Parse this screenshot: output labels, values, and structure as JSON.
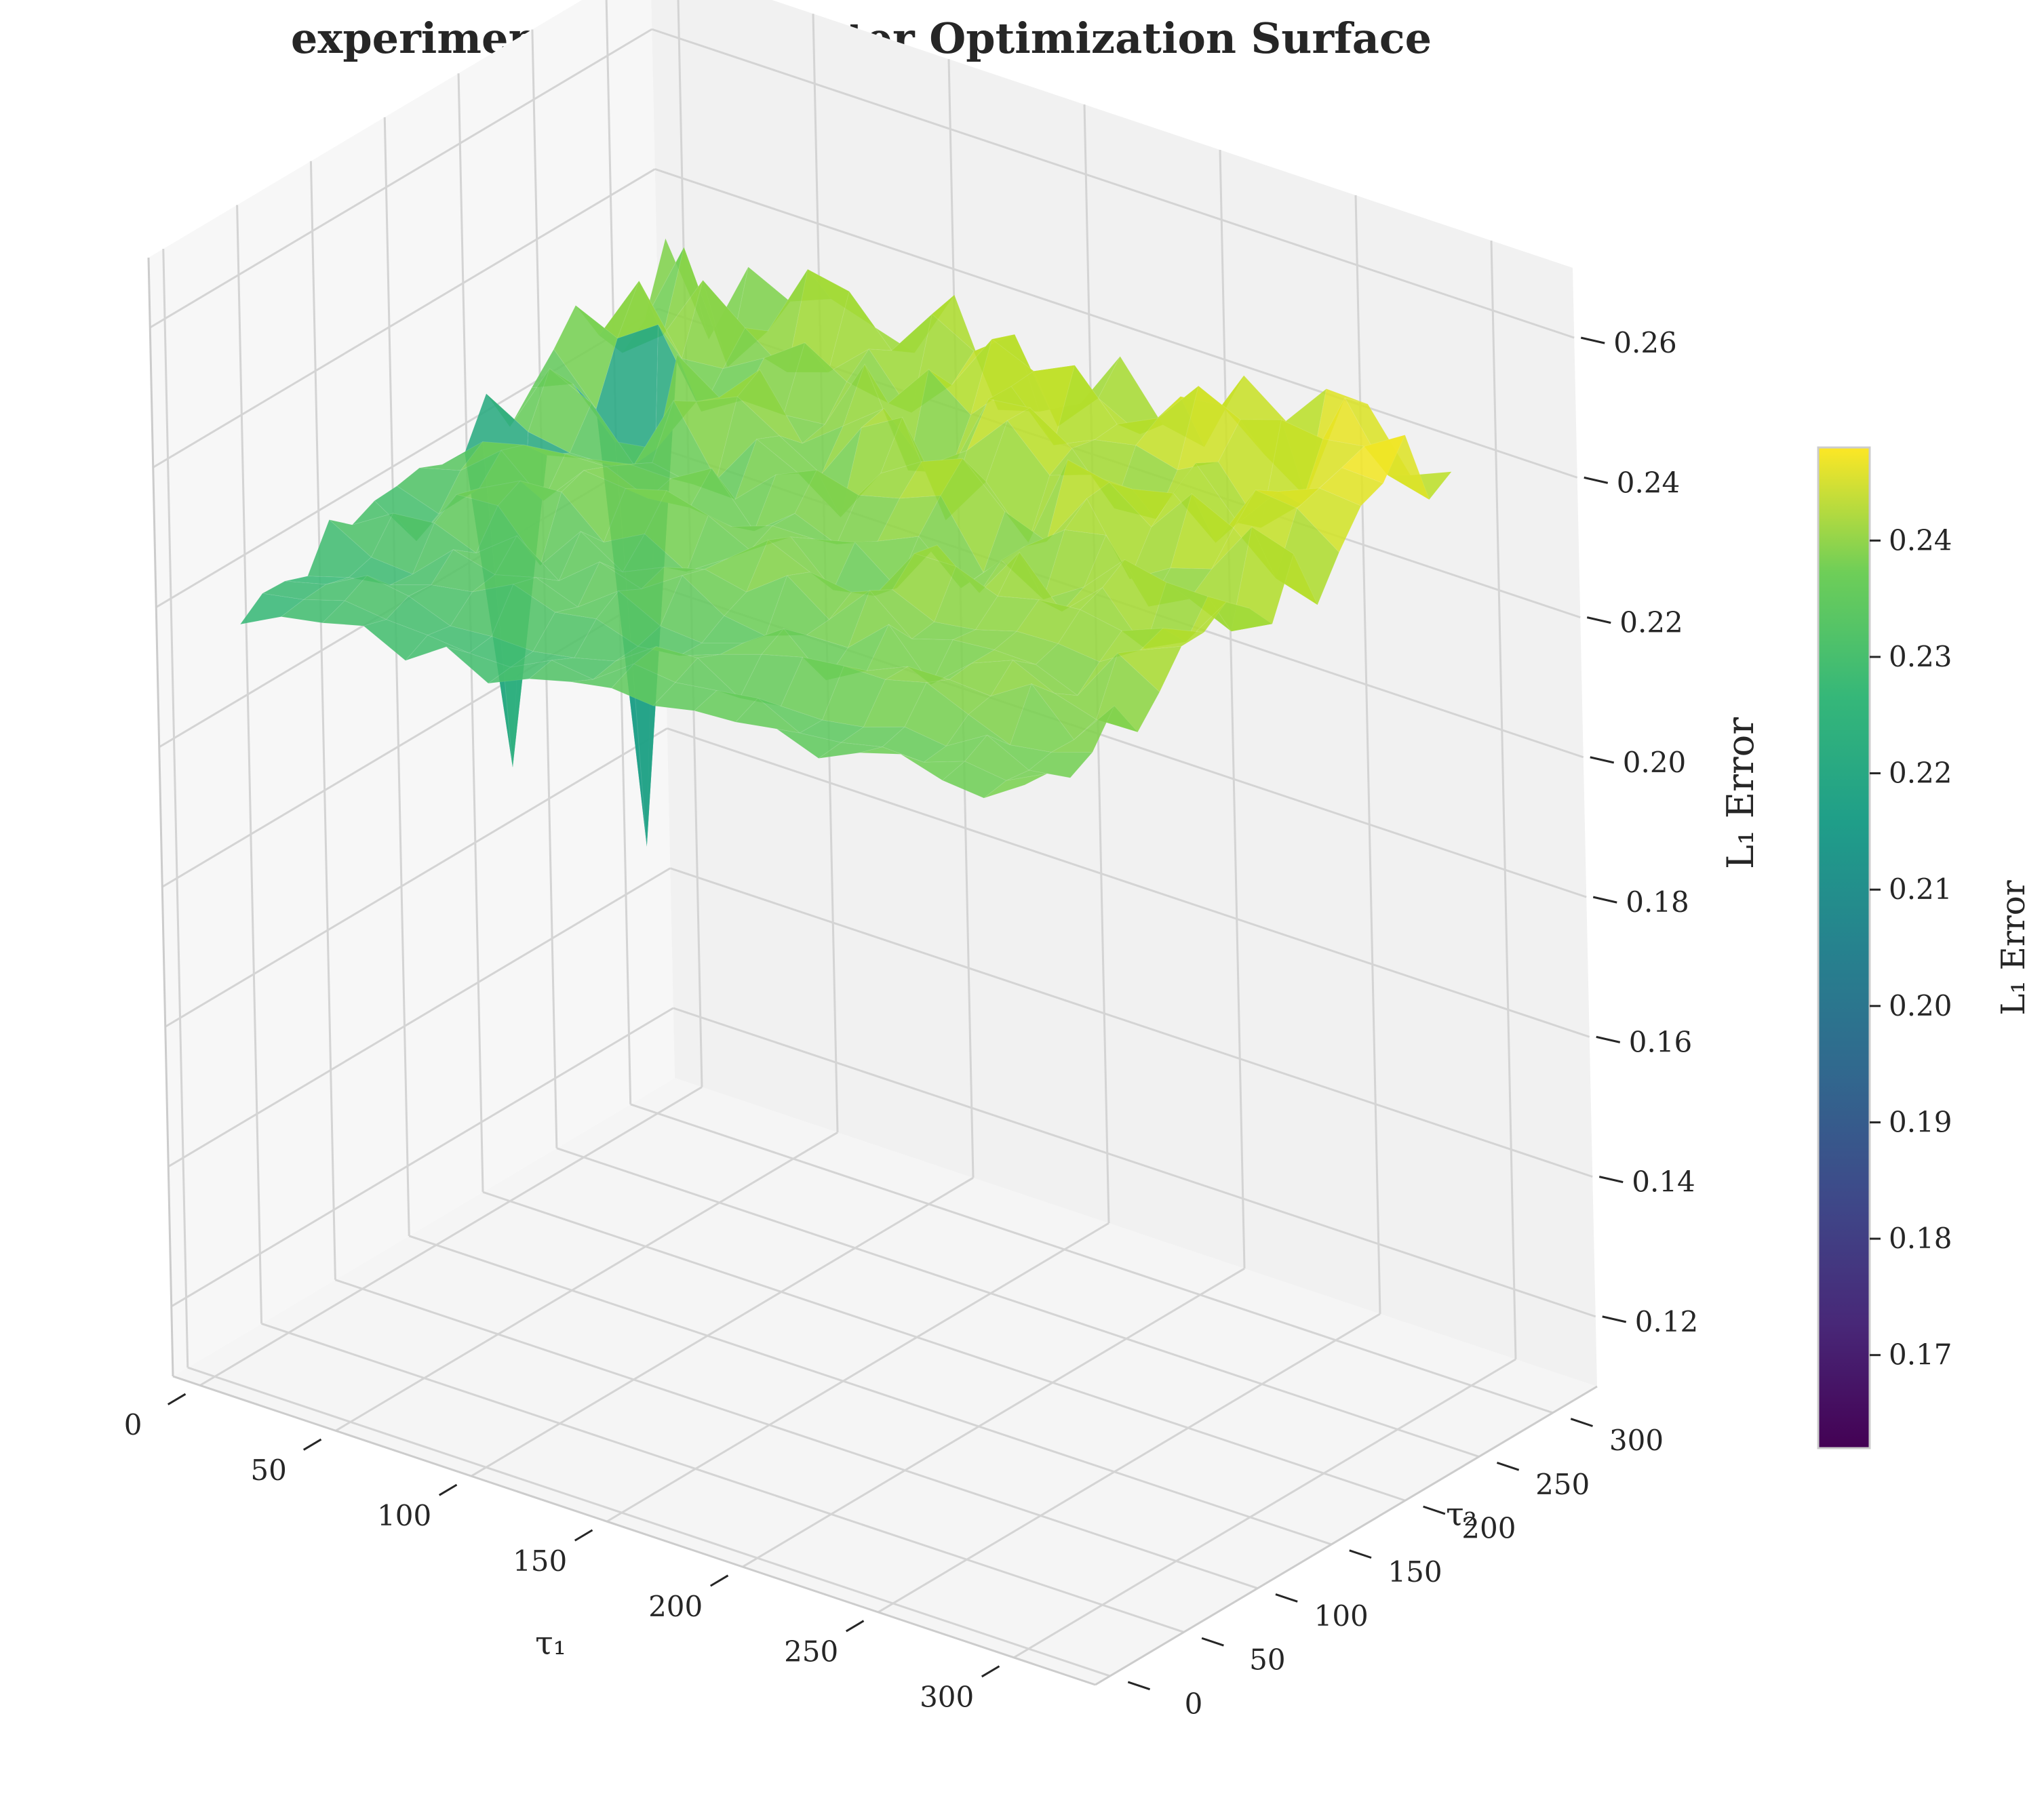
{
  "chart_data": {
    "type": "surface3d",
    "title": "experiment_11: Parameter Optimization Surface",
    "xlabel": "τ₁",
    "ylabel": "τ₂",
    "zlabel": "L₁ Error",
    "x_ticks": [
      0,
      50,
      100,
      150,
      200,
      250,
      300
    ],
    "y_ticks": [
      0,
      50,
      100,
      150,
      200,
      250,
      300
    ],
    "z_ticks": [
      "0.12",
      "0.14",
      "0.16",
      "0.18",
      "0.20",
      "0.22",
      "0.24",
      "0.26"
    ],
    "xlim": [
      -10,
      330
    ],
    "ylim": [
      -10,
      330
    ],
    "zlim": [
      0.11,
      0.27
    ],
    "grid": true,
    "colormap": "viridis",
    "colorbar": {
      "label": "L₁ Error",
      "range": [
        0.162,
        0.248
      ],
      "ticks": [
        "0.17",
        "0.18",
        "0.19",
        "0.20",
        "0.21",
        "0.22",
        "0.23",
        "0.24"
      ]
    },
    "surface": {
      "tau1_range": [
        10,
        300
      ],
      "tau2_range": [
        10,
        300
      ],
      "grid_n": 20,
      "z_base_min": 0.212,
      "z_base_max": 0.243,
      "dips": [
        {
          "tau1": 40,
          "tau2": 230,
          "z": 0.163
        },
        {
          "tau1": 30,
          "tau2": 160,
          "z": 0.18
        }
      ]
    }
  }
}
